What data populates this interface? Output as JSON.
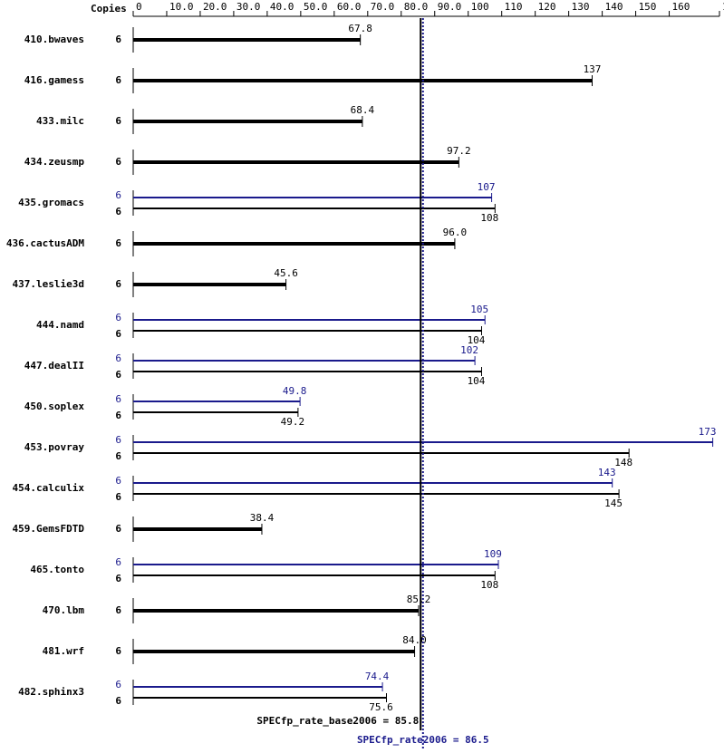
{
  "chart_data": {
    "type": "spec-bar",
    "copies_header": "Copies",
    "xlim": [
      0,
      175
    ],
    "xticks": [
      0,
      {
        "value": 10,
        "label": "10.0"
      },
      {
        "value": 20,
        "label": "20.0"
      },
      {
        "value": 30,
        "label": "30.0"
      },
      {
        "value": 40,
        "label": "40.0"
      },
      {
        "value": 50,
        "label": "50.0"
      },
      {
        "value": 60,
        "label": "60.0"
      },
      {
        "value": 70,
        "label": "70.0"
      },
      {
        "value": 80,
        "label": "80.0"
      },
      {
        "value": 90,
        "label": "90.0"
      },
      100,
      110,
      120,
      130,
      140,
      150,
      160,
      175
    ],
    "base_color": "#000000",
    "peak_color": "#1a1a8c",
    "benchmarks": [
      {
        "name": "410.bwaves",
        "copies": 6,
        "value": 67.8
      },
      {
        "name": "416.gamess",
        "copies": 6,
        "value": 137
      },
      {
        "name": "433.milc",
        "copies": 6,
        "value": 68.4
      },
      {
        "name": "434.zeusmp",
        "copies": 6,
        "value": 97.2
      },
      {
        "name": "435.gromacs",
        "peak_copies": 6,
        "peak_value": 107,
        "base_copies": 6,
        "base_value": 108
      },
      {
        "name": "436.cactusADM",
        "copies": 6,
        "value": 96.0,
        "value_label": "96.0"
      },
      {
        "name": "437.leslie3d",
        "copies": 6,
        "value": 45.6
      },
      {
        "name": "444.namd",
        "peak_copies": 6,
        "peak_value": 105,
        "base_copies": 6,
        "base_value": 104
      },
      {
        "name": "447.dealII",
        "peak_copies": 6,
        "peak_value": 102,
        "base_copies": 6,
        "base_value": 104
      },
      {
        "name": "450.soplex",
        "peak_copies": 6,
        "peak_value": 49.8,
        "base_copies": 6,
        "base_value": 49.2
      },
      {
        "name": "453.povray",
        "peak_copies": 6,
        "peak_value": 173,
        "base_copies": 6,
        "base_value": 148
      },
      {
        "name": "454.calculix",
        "peak_copies": 6,
        "peak_value": 143,
        "base_copies": 6,
        "base_value": 145
      },
      {
        "name": "459.GemsFDTD",
        "copies": 6,
        "value": 38.4
      },
      {
        "name": "465.tonto",
        "peak_copies": 6,
        "peak_value": 109,
        "base_copies": 6,
        "base_value": 108
      },
      {
        "name": "470.lbm",
        "copies": 6,
        "value": 85.2
      },
      {
        "name": "481.wrf",
        "copies": 6,
        "value": 84.0,
        "value_label": "84.0"
      },
      {
        "name": "482.sphinx3",
        "peak_copies": 6,
        "peak_value": 74.4,
        "base_copies": 6,
        "base_value": 75.6
      }
    ],
    "base_summary": {
      "label": "SPECfp_rate_base2006 = 85.8",
      "value": 85.8
    },
    "peak_summary": {
      "label": "SPECfp_rate2006 = 86.5",
      "value": 86.5
    }
  }
}
